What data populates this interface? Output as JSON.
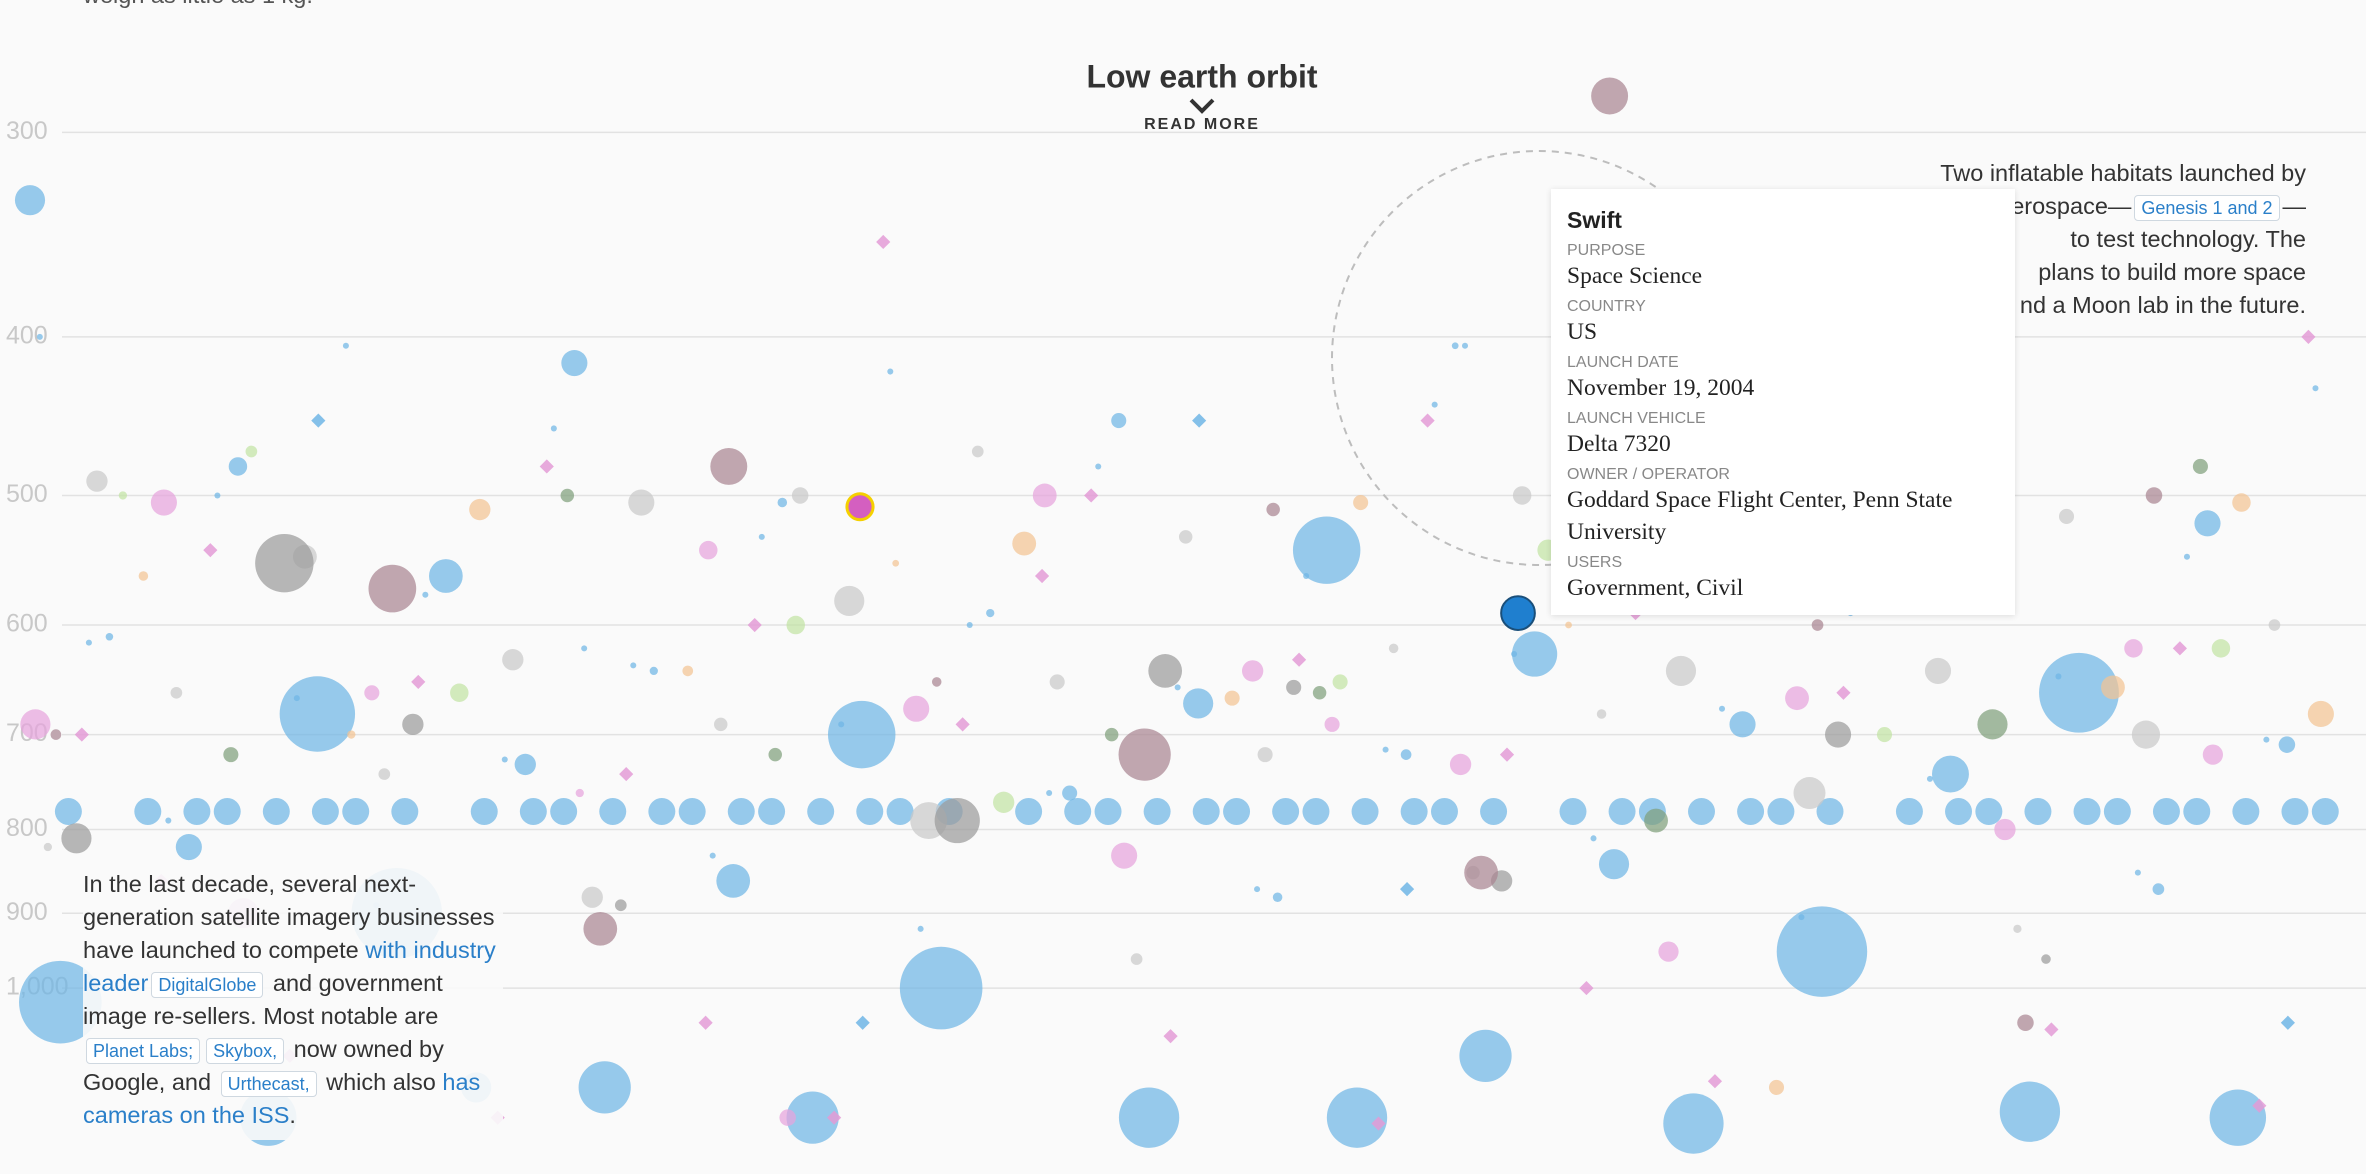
{
  "chart_data": {
    "type": "scatter",
    "title": "Low earth orbit",
    "read_more": "READ MORE",
    "intro_tail": "weigh as little as 1 kg.",
    "log_scale": true,
    "grid": true,
    "ylim": [
      249,
      1299
    ],
    "yticks": [
      300,
      400,
      500,
      600,
      700,
      800,
      900,
      {
        "value": 1000,
        "label": "1,000"
      }
    ],
    "series": [
      {
        "color": "#6fb5e5",
        "shape": "circle",
        "values": [
          330,
          405,
          415,
          420,
          450,
          480,
          500,
          505,
          520,
          540,
          560,
          570,
          590,
          610,
          625,
          640,
          660,
          670,
          680,
          690,
          700,
          710,
          720,
          730,
          740,
          760,
          820,
          840,
          860,
          870,
          880,
          900,
          950,
          1000,
          1020,
          1100,
          1150,
          1190,
          1200,
          1200,
          1210,
          1200,
          1200,
          1200,
          1150
        ],
        "sizes": [
          400,
          20,
          300,
          30,
          100,
          150,
          500,
          40,
          300,
          2000,
          500,
          100,
          30,
          25,
          900,
          30,
          2800,
          400,
          2500,
          300,
          2000,
          120,
          50,
          200,
          600,
          100,
          300,
          400,
          500,
          60,
          40,
          3600,
          3600,
          3000,
          3000,
          1200,
          1200,
          1600,
          1600,
          1400,
          1600,
          1200,
          1400,
          1600,
          400
        ]
      },
      {
        "color": "#6fb5e5",
        "shape": "circle",
        "values": [
          405,
          410,
          420,
          430,
          440,
          455,
          470,
          480,
          500,
          515,
          530,
          545,
          560,
          575,
          590,
          600,
          615,
          625,
          635,
          645,
          655,
          665,
          675,
          690,
          705,
          715,
          725,
          745,
          760,
          790,
          810,
          830,
          850,
          870,
          890,
          905,
          920,
          400,
          405,
          620
        ],
        "size": 16
      },
      {
        "color": "#6fb5e5",
        "shape": "circle",
        "values": [
          780,
          780,
          780,
          780,
          780,
          780,
          780,
          780,
          780,
          780,
          780,
          780,
          780,
          780,
          780,
          780,
          780,
          780,
          780,
          780,
          780,
          780,
          780,
          780,
          780,
          780,
          780,
          780,
          780,
          780,
          780,
          780,
          780,
          780,
          780,
          780,
          780,
          780,
          780,
          780,
          780,
          780,
          780,
          780,
          780,
          780,
          780,
          780,
          780,
          780
        ],
        "size": 320
      },
      {
        "color": "#c9c9c9",
        "shape": "circle",
        "values": [
          470,
          490,
          500,
          505,
          515,
          530,
          545,
          560,
          580,
          600,
          620,
          630,
          640,
          650,
          660,
          680,
          690,
          700,
          720,
          740,
          760,
          790,
          820,
          850,
          880,
          920,
          960,
          1000,
          640,
          500
        ],
        "sizes": [
          60,
          200,
          150,
          300,
          100,
          80,
          250,
          500,
          400,
          60,
          40,
          200,
          300,
          100,
          60,
          40,
          80,
          350,
          100,
          60,
          450,
          600,
          30,
          80,
          200,
          30,
          60,
          40,
          400,
          120
        ]
      },
      {
        "color": "#9b9b9b",
        "shape": "circle",
        "values": [
          655,
          690,
          700,
          790,
          810,
          860,
          890,
          960,
          640,
          550,
          440
        ],
        "sizes": [
          100,
          200,
          300,
          900,
          400,
          200,
          60,
          40,
          500,
          1500,
          3600
        ]
      },
      {
        "color": "#a98592",
        "shape": "circle",
        "values": [
          285,
          480,
          500,
          510,
          570,
          600,
          650,
          700,
          850,
          920,
          1050,
          720
        ],
        "sizes": [
          600,
          600,
          120,
          80,
          1000,
          60,
          40,
          50,
          500,
          500,
          120,
          1200
        ]
      },
      {
        "color": "#e6a3dc",
        "shape": "circle",
        "values": [
          370,
          500,
          505,
          510,
          540,
          620,
          640,
          660,
          665,
          675,
          690,
          730,
          760,
          800,
          830,
          900,
          950,
          1200,
          720,
          690
        ],
        "sizes": [
          1100,
          250,
          300,
          100,
          150,
          150,
          200,
          100,
          250,
          300,
          400,
          200,
          30,
          200,
          300,
          400,
          180,
          120,
          180,
          100
        ]
      },
      {
        "color": "#f2c393",
        "shape": "circle",
        "values": [
          505,
          505,
          510,
          520,
          535,
          560,
          600,
          640,
          655,
          665,
          700,
          1150,
          550,
          680
        ],
        "sizes": [
          150,
          100,
          200,
          150,
          250,
          40,
          20,
          50,
          250,
          100,
          30,
          100,
          20,
          300
        ]
      },
      {
        "color": "#c2e3a4",
        "shape": "circle",
        "values": [
          470,
          540,
          600,
          620,
          650,
          660,
          700,
          770,
          500,
          540
        ],
        "sizes": [
          60,
          220,
          150,
          150,
          100,
          150,
          100,
          200,
          30,
          200
        ]
      },
      {
        "color": "#7f9f7c",
        "shape": "circle",
        "values": [
          500,
          690,
          700,
          720,
          790,
          720,
          480,
          660
        ],
        "sizes": [
          80,
          400,
          80,
          100,
          250,
          80,
          100,
          80
        ]
      },
      {
        "color": "#e39bd6",
        "shape": "diamond",
        "values": [
          350,
          400,
          450,
          480,
          490,
          500,
          540,
          590,
          600,
          620,
          630,
          650,
          660,
          690,
          700,
          720,
          740,
          1060,
          1070,
          1100,
          1140,
          1200,
          1180,
          1210,
          1200,
          520,
          560,
          860,
          1000,
          1050
        ],
        "size": 45
      },
      {
        "color": "#6fb5e5",
        "shape": "diamond",
        "values": [
          450,
          450,
          470,
          1050,
          1050,
          870
        ],
        "size": 45
      }
    ],
    "hover": {
      "value": 508,
      "size": 300,
      "color": "#d45fc0",
      "outline": "#f5d000"
    },
    "selected": {
      "name": "Swift",
      "value": 590,
      "size": 500,
      "color": "#1f7fcf",
      "details": [
        {
          "label": "PURPOSE",
          "value": "Space Science"
        },
        {
          "label": "COUNTRY",
          "value": "US"
        },
        {
          "label": "LAUNCH DATE",
          "value": "November 19, 2004"
        },
        {
          "label": "LAUNCH VEHICLE",
          "value": "Delta 7320"
        },
        {
          "label": "OWNER / OPERATOR",
          "value": "Goddard Space Flight Center, Penn State University"
        },
        {
          "label": "USERS",
          "value": "Government, Civil"
        }
      ]
    },
    "annotations": {
      "left": [
        {
          "text": "In the last decade, several next-generation satellite imagery businesses have launched to compete "
        },
        {
          "text": "with industry leader",
          "link": true
        },
        {
          "text": "DigitalGlobe",
          "chip": true
        },
        {
          "text": " and government image re-sellers. Most notable are "
        },
        {
          "text": "Planet Labs;",
          "chip": true
        },
        {
          "text": "Skybox,",
          "chip": true
        },
        {
          "text": " now owned by Google, and "
        },
        {
          "text": "Urthecast,",
          "chip": true
        },
        {
          "text": " which also "
        },
        {
          "text": "has cameras on the ISS",
          "link": true
        },
        {
          "text": "."
        }
      ],
      "right": [
        {
          "text": "Two inflatable habitats launched by"
        },
        {
          "text": "erospace—"
        },
        {
          "text": "Genesis 1 and 2",
          "chip": true
        },
        {
          "text": "—"
        },
        {
          "text": "to test technology. The"
        },
        {
          "text": "plans to build more space"
        },
        {
          "text": "nd a Moon lab in the future."
        }
      ]
    }
  }
}
